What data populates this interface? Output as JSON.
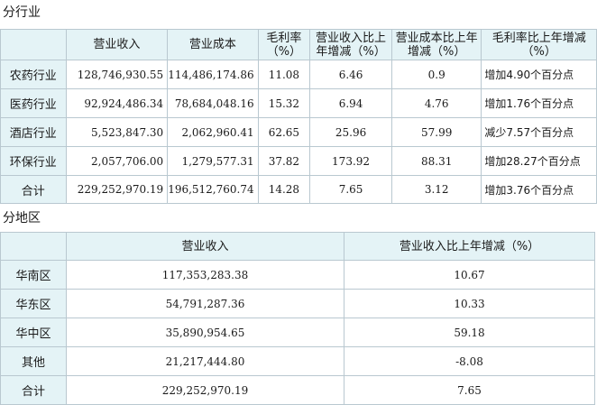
{
  "industry": {
    "section_title": "分行业",
    "headers": [
      "",
      "营业收入",
      "营业成本",
      "毛利率（%）",
      "营业收入比上年增减（%）",
      "营业成本比上年增减（%）",
      "毛利率比上年增减（%）"
    ],
    "rows": [
      [
        "农药行业",
        "128,746,930.55",
        "114,486,174.86",
        "11.08",
        "6.46",
        "0.9",
        "增加4.90个百分点"
      ],
      [
        "医药行业",
        "92,924,486.34",
        "78,684,048.16",
        "15.32",
        "6.94",
        "4.76",
        "增加1.76个百分点"
      ],
      [
        "酒店行业",
        "5,523,847.30",
        "2,062,960.41",
        "62.65",
        "25.96",
        "57.99",
        "减少7.57个百分点"
      ],
      [
        "环保行业",
        "2,057,706.00",
        "1,279,577.31",
        "37.82",
        "173.92",
        "88.31",
        "增加28.27个百分点"
      ],
      [
        "合计",
        "229,252,970.19",
        "196,512,760.74",
        "14.28",
        "7.65",
        "3.12",
        "增加3.76个百分点"
      ]
    ]
  },
  "region": {
    "section_title": "分地区",
    "headers": [
      "",
      "营业收入",
      "营业收入比上年增减（%）"
    ],
    "rows": [
      [
        "华南区",
        "117,353,283.38",
        "10.67"
      ],
      [
        "华东区",
        "54,791,287.36",
        "10.33"
      ],
      [
        "华中区",
        "35,890,954.65",
        "59.18"
      ],
      [
        "其他",
        "21,217,444.80",
        "-8.08"
      ],
      [
        "合计",
        "229,252,970.19",
        "7.65"
      ]
    ]
  }
}
